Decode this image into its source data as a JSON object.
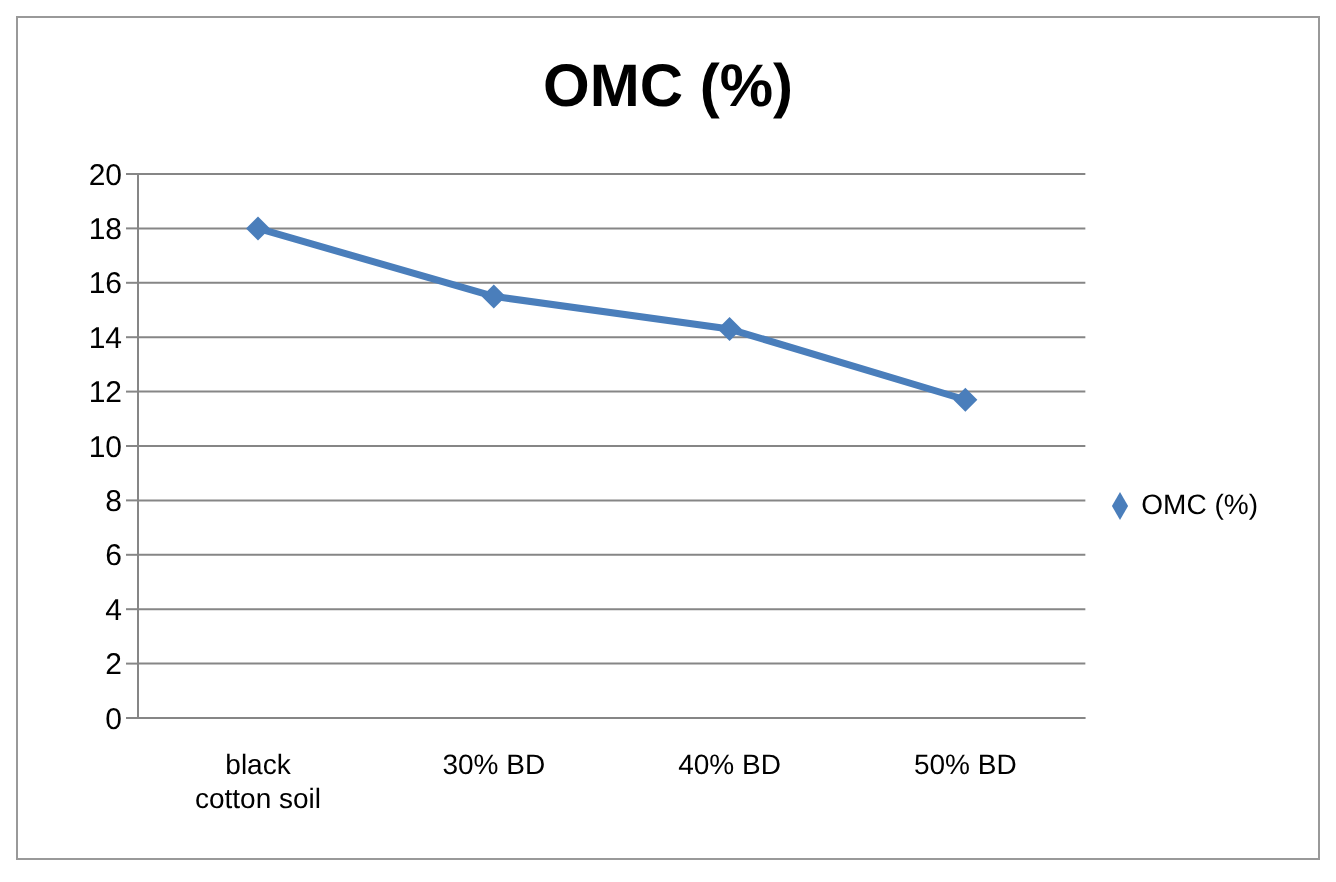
{
  "chart_data": {
    "type": "line",
    "title": "OMC (%)",
    "categories": [
      "black cotton soil",
      "30% BD",
      "40% BD",
      "50% BD"
    ],
    "series": [
      {
        "name": "OMC (%)",
        "color": "#4a7ebb",
        "values": [
          18,
          15.5,
          14.3,
          11.7
        ]
      }
    ],
    "ylim": [
      0,
      20
    ],
    "yticks": [
      0,
      2,
      4,
      6,
      8,
      10,
      12,
      14,
      16,
      18,
      20
    ],
    "grid": "y",
    "legend": "right",
    "marker": "diamond",
    "line_style": "solid"
  }
}
